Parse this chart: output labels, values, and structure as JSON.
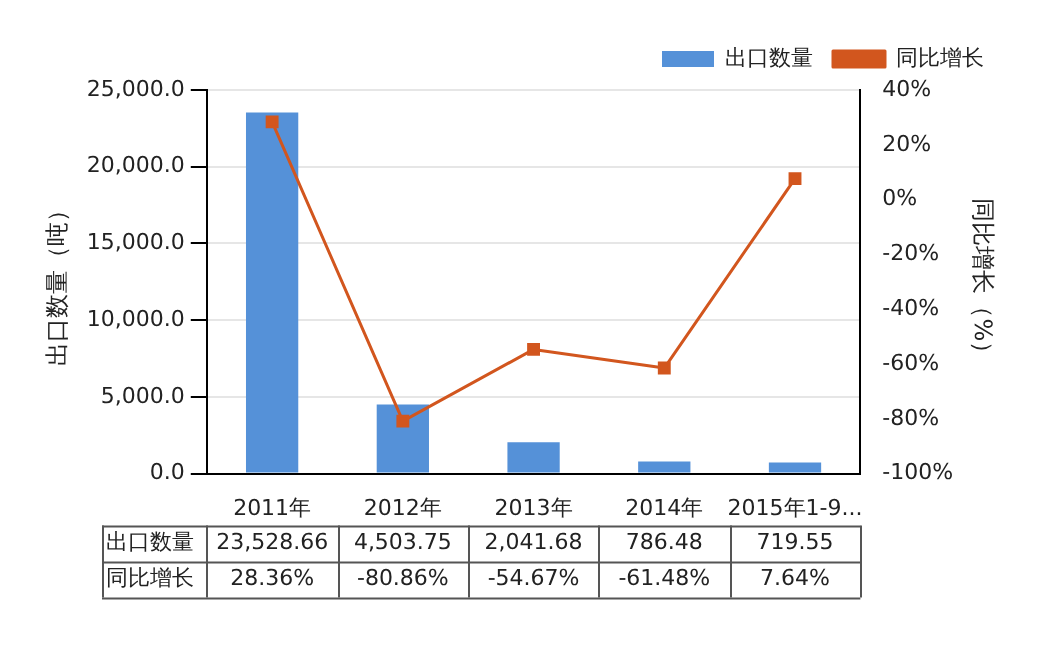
{
  "chart_data": {
    "type": "bar",
    "xlabel": null,
    "ylabel": "出口数量（吨）",
    "y2label": "同比增长（%）",
    "categories": [
      "2011年",
      "2012年",
      "2013年",
      "2014年",
      "2015年1-9..."
    ],
    "series": [
      {
        "name": "出口数量",
        "color": "#5591d8",
        "values": [
          23528.66,
          4503.75,
          2041.68,
          786.48,
          719.55
        ],
        "value_labels": [
          "23,528.66",
          "4,503.75",
          "2,041.68",
          "786.48",
          "719.55"
        ]
      },
      {
        "name": "同比增长",
        "type": "line",
        "axis": "y2",
        "color": "#d2561e",
        "values": [
          28.36,
          -80.86,
          -54.67,
          -61.48,
          7.64
        ],
        "value_labels": [
          "28.36%",
          "-80.86%",
          "-54.67%",
          "-61.48%",
          "7.64%"
        ]
      }
    ],
    "ylim": [
      0,
      25000
    ],
    "yticks": [
      {
        "value": 0,
        "label": "0.0"
      },
      {
        "value": 5000,
        "label": "5,000.0"
      },
      {
        "value": 10000,
        "label": "10,000.0"
      },
      {
        "value": 15000,
        "label": "15,000.0"
      },
      {
        "value": 20000,
        "label": "20,000.0"
      },
      {
        "value": 25000,
        "label": "25,000.0"
      }
    ],
    "y2lim": [
      -100,
      40
    ],
    "y2ticks": [
      {
        "value": -100,
        "label": "-100%"
      },
      {
        "value": -80,
        "label": "-80%"
      },
      {
        "value": -60,
        "label": "-60%"
      },
      {
        "value": -40,
        "label": "-40%"
      },
      {
        "value": -20,
        "label": "-20%"
      },
      {
        "value": 0,
        "label": "0%"
      },
      {
        "value": 20,
        "label": "20%"
      },
      {
        "value": 40,
        "label": "40%"
      }
    ],
    "grid": "y",
    "legend": "top right",
    "marker": "square",
    "line_style": "solid",
    "data_labels": true
  }
}
